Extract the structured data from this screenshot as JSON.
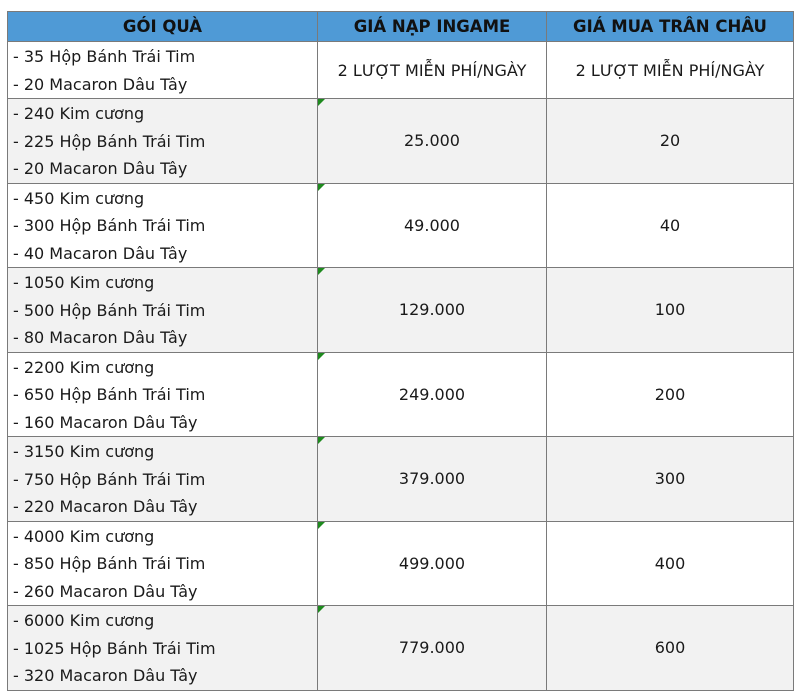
{
  "table": {
    "headers": [
      "GÓI QUÀ",
      "GIÁ NẠP INGAME",
      "GIÁ MUA TRÂN CHÂU"
    ],
    "rows": [
      {
        "items": [
          "- 35 Hộp Bánh Trái Tim",
          "- 20 Macaron Dâu Tây"
        ],
        "ingame": "2 LƯỢT MIỄN PHÍ/NGÀY",
        "pearl": "2 LƯỢT MIỄN PHÍ/NGÀY"
      },
      {
        "items": [
          "- 240 Kim cương",
          "- 225 Hộp Bánh Trái Tim",
          "- 20 Macaron Dâu Tây"
        ],
        "ingame": "25.000",
        "pearl": "20"
      },
      {
        "items": [
          "- 450 Kim cương",
          "- 300 Hộp Bánh Trái Tim",
          "- 40 Macaron Dâu Tây"
        ],
        "ingame": "49.000",
        "pearl": "40"
      },
      {
        "items": [
          "- 1050 Kim cương",
          "- 500 Hộp Bánh Trái Tim",
          "- 80 Macaron Dâu Tây"
        ],
        "ingame": "129.000",
        "pearl": "100"
      },
      {
        "items": [
          "- 2200 Kim cương",
          "- 650 Hộp Bánh Trái Tim",
          "- 160 Macaron Dâu Tây"
        ],
        "ingame": "249.000",
        "pearl": "200"
      },
      {
        "items": [
          "- 3150 Kim cương",
          "- 750 Hộp Bánh Trái Tim",
          "- 220 Macaron Dâu Tây"
        ],
        "ingame": "379.000",
        "pearl": "300"
      },
      {
        "items": [
          "- 4000 Kim cương",
          "- 850 Hộp Bánh Trái Tim",
          "- 260 Macaron Dâu Tây"
        ],
        "ingame": "499.000",
        "pearl": "400"
      },
      {
        "items": [
          "- 6000 Kim cương",
          "- 1025 Hộp Bánh Trái Tim",
          "- 320 Macaron Dâu Tây"
        ],
        "ingame": "779.000",
        "pearl": "600"
      }
    ]
  },
  "colors": {
    "header_bg": "#4f9ad6",
    "alt_row_bg": "#f2f2f2",
    "grid": "#7a7a7a",
    "corner_mark": "#1e8a1e"
  }
}
